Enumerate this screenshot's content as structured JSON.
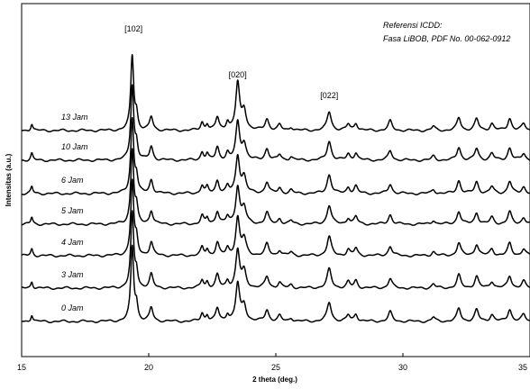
{
  "chart_data": {
    "type": "line",
    "xlabel": "2 theta (deg.)",
    "ylabel": "Intensitas (a.u.)",
    "xlim": [
      15,
      35
    ],
    "x_ticks": [
      15,
      20,
      25,
      30,
      35
    ],
    "x_tick_labels": [
      "15",
      "20",
      "25",
      "30",
      "35"
    ],
    "grid": false,
    "reference_note": [
      "Referensi ICDD:",
      "Fasa LiBOB, PDF No. 00-062-0912"
    ],
    "peak_labels": [
      {
        "text": "[102]",
        "x": 19.4
      },
      {
        "text": "[020]",
        "x": 23.5
      },
      {
        "text": "[022]",
        "x": 27.1
      }
    ],
    "series": [
      {
        "name": "13 Jam"
      },
      {
        "name": "10 Jam"
      },
      {
        "name": "6 Jam"
      },
      {
        "name": "5 Jam"
      },
      {
        "name": "4 Jam"
      },
      {
        "name": "3 Jam"
      },
      {
        "name": "0 Jam"
      }
    ],
    "peaks": [
      {
        "x": 15.4,
        "h": 1.0,
        "w": 0.05
      },
      {
        "x": 19.35,
        "h": 11.0,
        "w": 0.07
      },
      {
        "x": 19.52,
        "h": 2.2,
        "w": 0.06
      },
      {
        "x": 20.1,
        "h": 2.0,
        "w": 0.08
      },
      {
        "x": 22.1,
        "h": 1.2,
        "w": 0.07
      },
      {
        "x": 22.3,
        "h": 0.9,
        "w": 0.06
      },
      {
        "x": 22.7,
        "h": 1.9,
        "w": 0.08
      },
      {
        "x": 23.1,
        "h": 1.0,
        "w": 0.07
      },
      {
        "x": 23.5,
        "h": 5.5,
        "w": 0.09
      },
      {
        "x": 23.75,
        "h": 2.4,
        "w": 0.1
      },
      {
        "x": 24.65,
        "h": 1.7,
        "w": 0.09
      },
      {
        "x": 25.15,
        "h": 0.8,
        "w": 0.08
      },
      {
        "x": 25.6,
        "h": 0.5,
        "w": 0.08
      },
      {
        "x": 27.1,
        "h": 2.8,
        "w": 0.1
      },
      {
        "x": 27.85,
        "h": 0.9,
        "w": 0.08
      },
      {
        "x": 28.15,
        "h": 1.1,
        "w": 0.08
      },
      {
        "x": 29.5,
        "h": 1.4,
        "w": 0.09
      },
      {
        "x": 31.2,
        "h": 0.6,
        "w": 0.08
      },
      {
        "x": 32.2,
        "h": 1.9,
        "w": 0.09
      },
      {
        "x": 32.9,
        "h": 1.7,
        "w": 0.09
      },
      {
        "x": 33.5,
        "h": 1.0,
        "w": 0.09
      },
      {
        "x": 34.2,
        "h": 1.8,
        "w": 0.09
      },
      {
        "x": 34.75,
        "h": 1.0,
        "w": 0.09
      }
    ]
  }
}
